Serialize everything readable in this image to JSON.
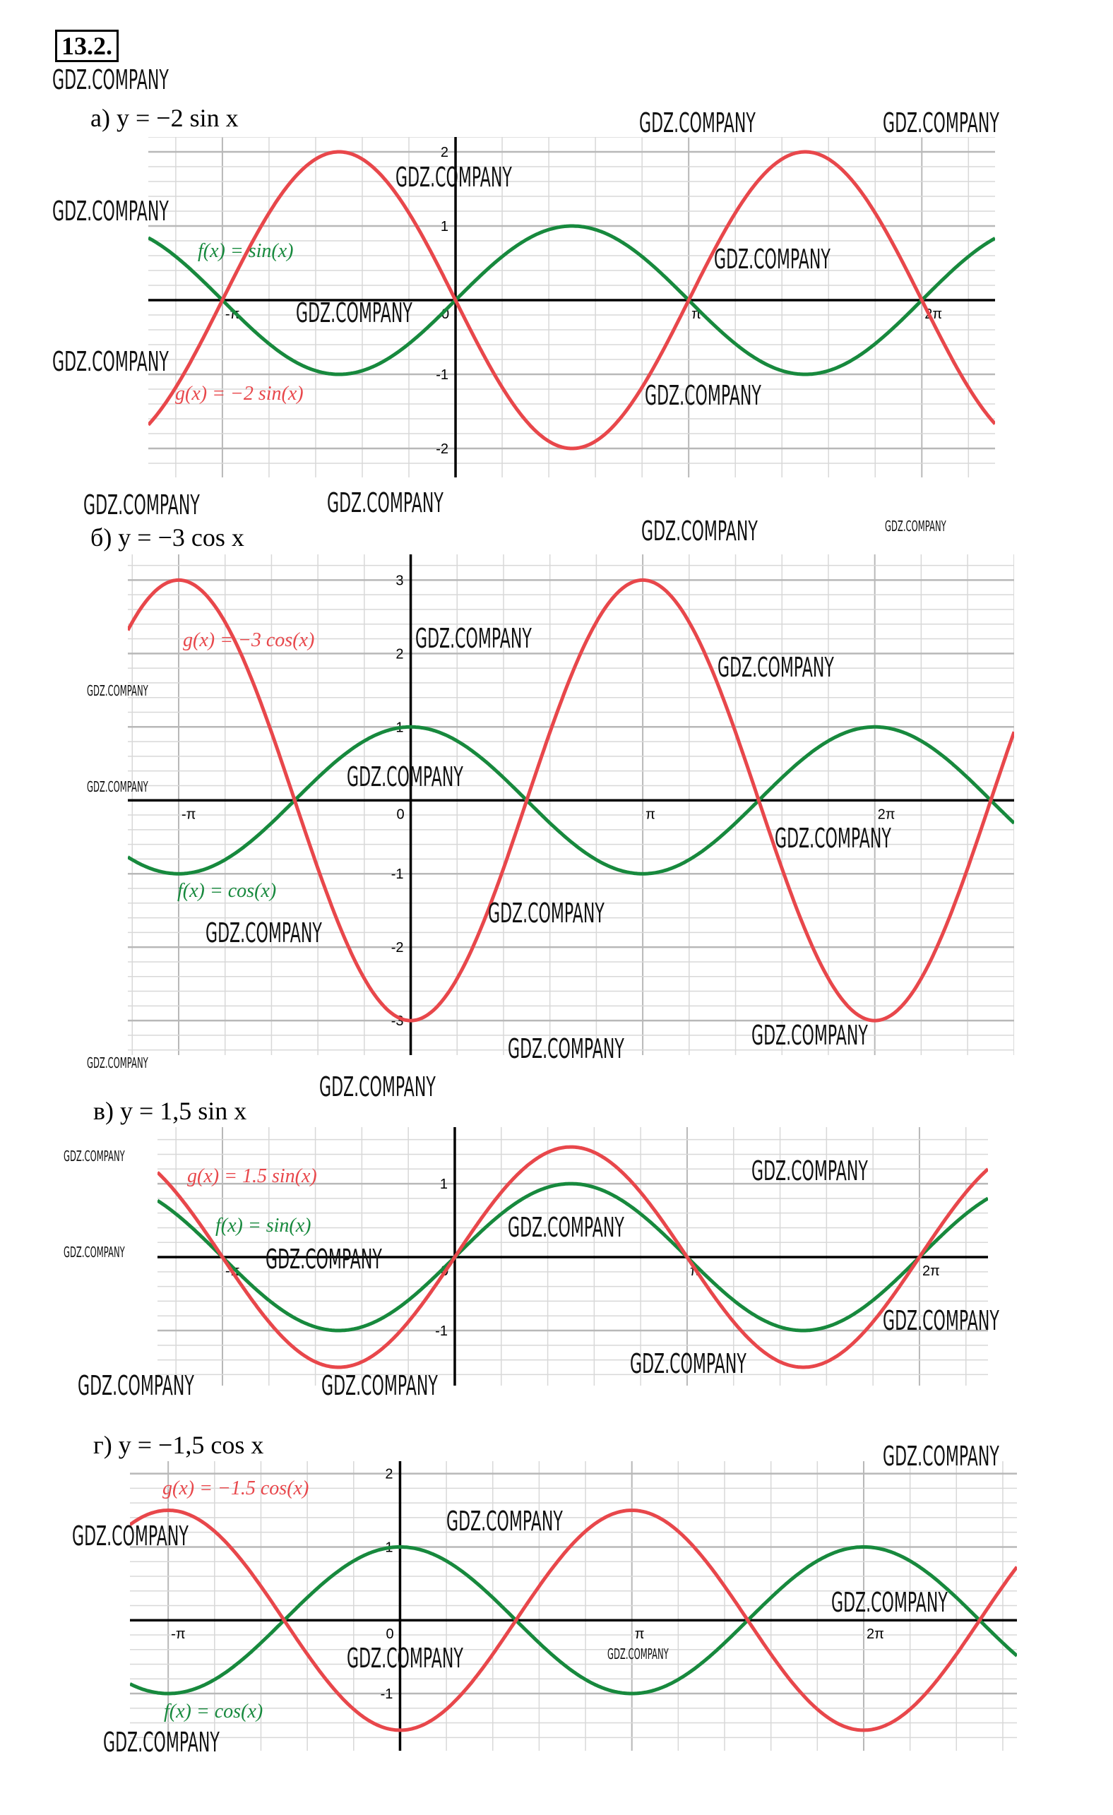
{
  "exercise_number": "13.2.",
  "watermark": "GDZ.COMPANY",
  "colors": {
    "red": "#e8474b",
    "green": "#17893d",
    "grid": "#d8d8d8",
    "grid_major": "#b8b8b8",
    "axis": "#000000"
  },
  "chart_data": [
    {
      "type": "line",
      "title": "а)  y = −2 sin x",
      "xlim": [
        -4.14,
        7.27
      ],
      "ylim": [
        -2.39,
        2.2
      ],
      "x_ticks": [
        {
          "value": -3.1416,
          "label": "-π"
        },
        {
          "value": 0,
          "label": "0"
        },
        {
          "value": 3.1416,
          "label": "π"
        },
        {
          "value": 6.2832,
          "label": "2π"
        }
      ],
      "y_ticks": [
        {
          "value": 2,
          "label": "2"
        },
        {
          "value": 1,
          "label": "1"
        },
        {
          "value": -1,
          "label": "-1"
        },
        {
          "value": -2,
          "label": "-2"
        }
      ],
      "grid": true,
      "series": [
        {
          "name": "f(x) = sin(x)",
          "fn": "sin",
          "amplitude": 1,
          "color": "#17893d"
        },
        {
          "name": "g(x) = −2 sin(x)",
          "fn": "sin",
          "amplitude": -2,
          "color": "#e8474b"
        }
      ]
    },
    {
      "type": "line",
      "title": "б)  y = −3 cos x",
      "xlim": [
        -3.83,
        8.17
      ],
      "ylim": [
        -3.47,
        3.35
      ],
      "x_ticks": [
        {
          "value": -3.1416,
          "label": "-π"
        },
        {
          "value": 0,
          "label": "0"
        },
        {
          "value": 3.1416,
          "label": "π"
        },
        {
          "value": 6.2832,
          "label": "2π"
        }
      ],
      "y_ticks": [
        {
          "value": 3,
          "label": "3"
        },
        {
          "value": 2,
          "label": "2"
        },
        {
          "value": 1,
          "label": "1"
        },
        {
          "value": -1,
          "label": "-1"
        },
        {
          "value": -2,
          "label": "-2"
        },
        {
          "value": -3,
          "label": "-3"
        }
      ],
      "grid": true,
      "series": [
        {
          "name": "f(x) = cos(x)",
          "fn": "cos",
          "amplitude": 1,
          "color": "#17893d"
        },
        {
          "name": "g(x) = −3 cos(x)",
          "fn": "cos",
          "amplitude": -3,
          "color": "#e8474b"
        }
      ]
    },
    {
      "type": "line",
      "title": "в)  y = 1,5 sin x",
      "xlim": [
        -4.02,
        7.21
      ],
      "ylim": [
        -1.75,
        1.77
      ],
      "x_ticks": [
        {
          "value": -3.1416,
          "label": "-π"
        },
        {
          "value": 0,
          "label": "0"
        },
        {
          "value": 3.1416,
          "label": "π"
        },
        {
          "value": 6.2832,
          "label": "2π"
        }
      ],
      "y_ticks": [
        {
          "value": 1,
          "label": "1"
        },
        {
          "value": -1,
          "label": "-1"
        }
      ],
      "grid": true,
      "series": [
        {
          "name": "f(x) = sin(x)",
          "fn": "sin",
          "amplitude": 1,
          "color": "#17893d"
        },
        {
          "name": "g(x) = 1.5 sin(x)",
          "fn": "sin",
          "amplitude": 1.5,
          "color": "#e8474b"
        }
      ]
    },
    {
      "type": "line",
      "title": "г)  y = −1,5 cos x",
      "xlim": [
        -3.66,
        8.36
      ],
      "ylim": [
        -1.78,
        2.17
      ],
      "x_ticks": [
        {
          "value": -3.1416,
          "label": "-π"
        },
        {
          "value": 0,
          "label": "0"
        },
        {
          "value": 3.1416,
          "label": "π"
        },
        {
          "value": 6.2832,
          "label": "2π"
        }
      ],
      "y_ticks": [
        {
          "value": 2,
          "label": "2"
        },
        {
          "value": 1,
          "label": "1"
        },
        {
          "value": -1,
          "label": "-1"
        }
      ],
      "grid": true,
      "series": [
        {
          "name": "f(x) = cos(x)",
          "fn": "cos",
          "amplitude": 1,
          "color": "#17893d"
        },
        {
          "name": "g(x) = −1.5 cos(x)",
          "fn": "cos",
          "amplitude": -1.5,
          "color": "#e8474b"
        }
      ]
    }
  ]
}
